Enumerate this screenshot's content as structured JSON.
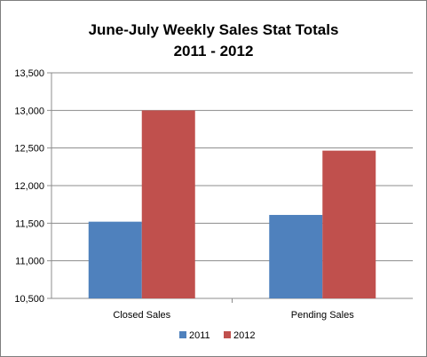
{
  "chart_data": {
    "type": "bar",
    "title_line1": "June-July Weekly Sales Stat Totals",
    "title_line2": "2011 - 2012",
    "categories": [
      "Closed Sales",
      "Pending Sales"
    ],
    "series": [
      {
        "name": "2011",
        "values": [
          11520,
          11610
        ],
        "color": "#4f81bd"
      },
      {
        "name": "2012",
        "values": [
          13000,
          12465
        ],
        "color": "#c0504d"
      }
    ],
    "ylim": [
      10500,
      13500
    ],
    "yticks": [
      10500,
      11000,
      11500,
      12000,
      12500,
      13000,
      13500
    ],
    "ytick_labels": [
      "10,500",
      "11,000",
      "11,500",
      "12,000",
      "12,500",
      "13,000",
      "13,500"
    ],
    "grid": true,
    "legend_position": "bottom"
  }
}
